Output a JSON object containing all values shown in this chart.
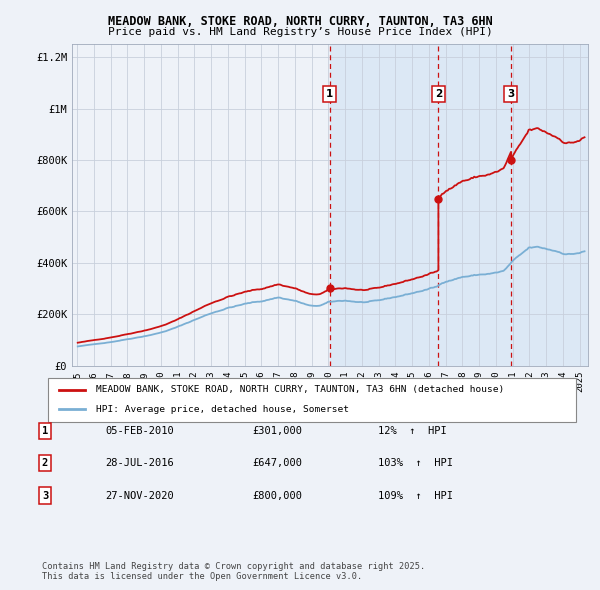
{
  "title1": "MEADOW BANK, STOKE ROAD, NORTH CURRY, TAUNTON, TA3 6HN",
  "title2": "Price paid vs. HM Land Registry’s House Price Index (HPI)",
  "background_color": "#eef2f8",
  "transactions": [
    {
      "num": 1,
      "date_str": "05-FEB-2010",
      "year_f": 2010.09,
      "price": 301000,
      "pct": "12%"
    },
    {
      "num": 2,
      "date_str": "28-JUL-2016",
      "year_f": 2016.57,
      "price": 647000,
      "pct": "103%"
    },
    {
      "num": 3,
      "date_str": "27-NOV-2020",
      "year_f": 2020.9,
      "price": 800000,
      "pct": "109%"
    }
  ],
  "hpi_line_color": "#7aafd4",
  "price_line_color": "#cc1111",
  "vline_color": "#cc1111",
  "shade_color": "#dce8f5",
  "ylim": [
    0,
    1250000
  ],
  "yticks": [
    0,
    200000,
    400000,
    600000,
    800000,
    1000000,
    1200000
  ],
  "ytick_labels": [
    "£0",
    "£200K",
    "£400K",
    "£600K",
    "£800K",
    "£1M",
    "£1.2M"
  ],
  "xlim_start": 1994.7,
  "xlim_end": 2025.5,
  "xticks": [
    1995,
    1996,
    1997,
    1998,
    1999,
    2000,
    2001,
    2002,
    2003,
    2004,
    2005,
    2006,
    2007,
    2008,
    2009,
    2010,
    2011,
    2012,
    2013,
    2014,
    2015,
    2016,
    2017,
    2018,
    2019,
    2020,
    2021,
    2022,
    2023,
    2024,
    2025
  ],
  "footer_text": "Contains HM Land Registry data © Crown copyright and database right 2025.\nThis data is licensed under the Open Government Licence v3.0.",
  "legend_label_red": "MEADOW BANK, STOKE ROAD, NORTH CURRY, TAUNTON, TA3 6HN (detached house)",
  "legend_label_blue": "HPI: Average price, detached house, Somerset"
}
